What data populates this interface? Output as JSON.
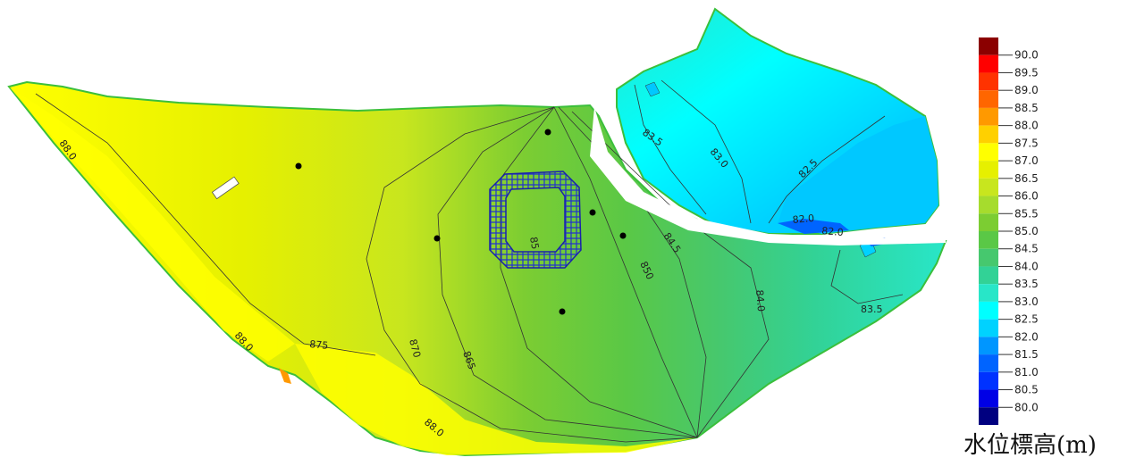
{
  "legend": {
    "title": "水位標高(m)",
    "levels": [
      {
        "value": "90.0",
        "color": "#FF0000"
      },
      {
        "value": "89.5",
        "color": "#FF3300"
      },
      {
        "value": "89.0",
        "color": "#FF6600"
      },
      {
        "value": "88.5",
        "color": "#FF9900"
      },
      {
        "value": "88.0",
        "color": "#FFD000"
      },
      {
        "value": "87.5",
        "color": "#FFFF00"
      },
      {
        "value": "87.0",
        "color": "#E6F000"
      },
      {
        "value": "86.5",
        "color": "#C8E61E"
      },
      {
        "value": "86.0",
        "color": "#A6DC2D"
      },
      {
        "value": "85.5",
        "color": "#7CCD32"
      },
      {
        "value": "85.0",
        "color": "#5AC846"
      },
      {
        "value": "84.5",
        "color": "#46C86E"
      },
      {
        "value": "84.0",
        "color": "#32D296"
      },
      {
        "value": "83.5",
        "color": "#28E6C8"
      },
      {
        "value": "83.0",
        "color": "#00FFFF"
      },
      {
        "value": "82.5",
        "color": "#00D2FF"
      },
      {
        "value": "82.0",
        "color": "#0096FF"
      },
      {
        "value": "81.5",
        "color": "#0064FF"
      },
      {
        "value": "81.0",
        "color": "#0032FF"
      },
      {
        "value": "80.5",
        "color": "#0000E6"
      },
      {
        "value": "80.0",
        "color": "#0000B4"
      }
    ],
    "top_color": "#8B0000",
    "bottom_color": "#000080"
  },
  "contour_labels": [
    {
      "text": "88.0",
      "name": "contour-label-88-0-west"
    },
    {
      "text": "88.0",
      "name": "contour-label-88-0-southwest"
    },
    {
      "text": "875",
      "name": "contour-label-87-5"
    },
    {
      "text": "870",
      "name": "contour-label-87-0"
    },
    {
      "text": "865",
      "name": "contour-label-86-5"
    },
    {
      "text": "88.0",
      "name": "contour-label-88-0-south"
    },
    {
      "text": "85",
      "name": "contour-label-85-inner"
    },
    {
      "text": "850",
      "name": "contour-label-85-0"
    },
    {
      "text": "84.5",
      "name": "contour-label-84-5"
    },
    {
      "text": "84.0",
      "name": "contour-label-84-0"
    },
    {
      "text": "83.5",
      "name": "contour-label-83-5"
    },
    {
      "text": "83.5",
      "name": "contour-label-83-5-north"
    },
    {
      "text": "83.0",
      "name": "contour-label-83-0"
    },
    {
      "text": "82.5",
      "name": "contour-label-82-5"
    },
    {
      "text": "82.0",
      "name": "contour-label-82-0"
    },
    {
      "text": "82.0",
      "name": "contour-label-82-0-b"
    }
  ]
}
